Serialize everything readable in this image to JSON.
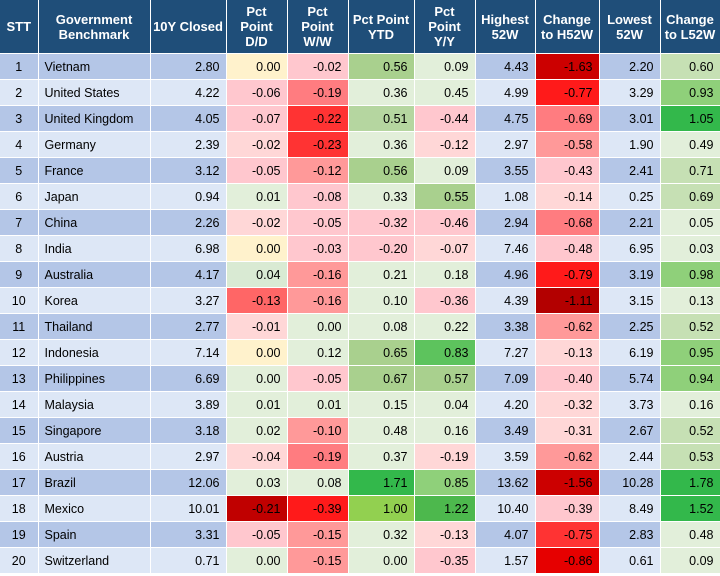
{
  "headers": [
    "STT",
    "Government Benchmark",
    "10Y Closed",
    "Pct Point D/D",
    "Pct Point W/W",
    "Pct Point YTD",
    "Pct Point Y/Y",
    "Highest 52W",
    "Change to H52W",
    "Lowest 52W",
    "Change to L52W"
  ],
  "rows": [
    {
      "stt": "1",
      "name": "Vietnam",
      "closed": "2.80",
      "dd": "0.00",
      "ww": "-0.02",
      "ytd": "0.56",
      "yy": "0.09",
      "h52": "4.43",
      "ch52": "-1.63",
      "l52": "2.20",
      "cl52": "0.60"
    },
    {
      "stt": "2",
      "name": "United States",
      "closed": "4.22",
      "dd": "-0.06",
      "ww": "-0.19",
      "ytd": "0.36",
      "yy": "0.45",
      "h52": "4.99",
      "ch52": "-0.77",
      "l52": "3.29",
      "cl52": "0.93"
    },
    {
      "stt": "3",
      "name": "United Kingdom",
      "closed": "4.05",
      "dd": "-0.07",
      "ww": "-0.22",
      "ytd": "0.51",
      "yy": "-0.44",
      "h52": "4.75",
      "ch52": "-0.69",
      "l52": "3.01",
      "cl52": "1.05"
    },
    {
      "stt": "4",
      "name": "Germany",
      "closed": "2.39",
      "dd": "-0.02",
      "ww": "-0.23",
      "ytd": "0.36",
      "yy": "-0.12",
      "h52": "2.97",
      "ch52": "-0.58",
      "l52": "1.90",
      "cl52": "0.49"
    },
    {
      "stt": "5",
      "name": "France",
      "closed": "3.12",
      "dd": "-0.05",
      "ww": "-0.12",
      "ytd": "0.56",
      "yy": "0.09",
      "h52": "3.55",
      "ch52": "-0.43",
      "l52": "2.41",
      "cl52": "0.71"
    },
    {
      "stt": "6",
      "name": "Japan",
      "closed": "0.94",
      "dd": "0.01",
      "ww": "-0.08",
      "ytd": "0.33",
      "yy": "0.55",
      "h52": "1.08",
      "ch52": "-0.14",
      "l52": "0.25",
      "cl52": "0.69"
    },
    {
      "stt": "7",
      "name": "China",
      "closed": "2.26",
      "dd": "-0.02",
      "ww": "-0.05",
      "ytd": "-0.32",
      "yy": "-0.46",
      "h52": "2.94",
      "ch52": "-0.68",
      "l52": "2.21",
      "cl52": "0.05"
    },
    {
      "stt": "8",
      "name": "India",
      "closed": "6.98",
      "dd": "0.00",
      "ww": "-0.03",
      "ytd": "-0.20",
      "yy": "-0.07",
      "h52": "7.46",
      "ch52": "-0.48",
      "l52": "6.95",
      "cl52": "0.03"
    },
    {
      "stt": "9",
      "name": "Australia",
      "closed": "4.17",
      "dd": "0.04",
      "ww": "-0.16",
      "ytd": "0.21",
      "yy": "0.18",
      "h52": "4.96",
      "ch52": "-0.79",
      "l52": "3.19",
      "cl52": "0.98"
    },
    {
      "stt": "10",
      "name": "Korea",
      "closed": "3.27",
      "dd": "-0.13",
      "ww": "-0.16",
      "ytd": "0.10",
      "yy": "-0.36",
      "h52": "4.39",
      "ch52": "-1.11",
      "l52": "3.15",
      "cl52": "0.13"
    },
    {
      "stt": "11",
      "name": "Thailand",
      "closed": "2.77",
      "dd": "-0.01",
      "ww": "0.00",
      "ytd": "0.08",
      "yy": "0.22",
      "h52": "3.38",
      "ch52": "-0.62",
      "l52": "2.25",
      "cl52": "0.52"
    },
    {
      "stt": "12",
      "name": "Indonesia",
      "closed": "7.14",
      "dd": "0.00",
      "ww": "0.12",
      "ytd": "0.65",
      "yy": "0.83",
      "h52": "7.27",
      "ch52": "-0.13",
      "l52": "6.19",
      "cl52": "0.95"
    },
    {
      "stt": "13",
      "name": "Philippines",
      "closed": "6.69",
      "dd": "0.00",
      "ww": "-0.05",
      "ytd": "0.67",
      "yy": "0.57",
      "h52": "7.09",
      "ch52": "-0.40",
      "l52": "5.74",
      "cl52": "0.94"
    },
    {
      "stt": "14",
      "name": "Malaysia",
      "closed": "3.89",
      "dd": "0.01",
      "ww": "0.01",
      "ytd": "0.15",
      "yy": "0.04",
      "h52": "4.20",
      "ch52": "-0.32",
      "l52": "3.73",
      "cl52": "0.16"
    },
    {
      "stt": "15",
      "name": "Singapore",
      "closed": "3.18",
      "dd": "0.02",
      "ww": "-0.10",
      "ytd": "0.48",
      "yy": "0.16",
      "h52": "3.49",
      "ch52": "-0.31",
      "l52": "2.67",
      "cl52": "0.52"
    },
    {
      "stt": "16",
      "name": "Austria",
      "closed": "2.97",
      "dd": "-0.04",
      "ww": "-0.19",
      "ytd": "0.37",
      "yy": "-0.19",
      "h52": "3.59",
      "ch52": "-0.62",
      "l52": "2.44",
      "cl52": "0.53"
    },
    {
      "stt": "17",
      "name": "Brazil",
      "closed": "12.06",
      "dd": "0.03",
      "ww": "0.08",
      "ytd": "1.71",
      "yy": "0.85",
      "h52": "13.62",
      "ch52": "-1.56",
      "l52": "10.28",
      "cl52": "1.78"
    },
    {
      "stt": "18",
      "name": "Mexico",
      "closed": "10.01",
      "dd": "-0.21",
      "ww": "-0.39",
      "ytd": "1.00",
      "yy": "1.22",
      "h52": "10.40",
      "ch52": "-0.39",
      "l52": "8.49",
      "cl52": "1.52"
    },
    {
      "stt": "19",
      "name": "Spain",
      "closed": "3.31",
      "dd": "-0.05",
      "ww": "-0.15",
      "ytd": "0.32",
      "yy": "-0.13",
      "h52": "4.07",
      "ch52": "-0.75",
      "l52": "2.83",
      "cl52": "0.48"
    },
    {
      "stt": "20",
      "name": "Switzerland",
      "closed": "0.71",
      "dd": "0.00",
      "ww": "-0.15",
      "ytd": "0.00",
      "yy": "-0.35",
      "h52": "1.57",
      "ch52": "-0.86",
      "l52": "0.61",
      "cl52": "0.09"
    }
  ],
  "cell_colors": {
    "dd": [
      "#fff2cc",
      "#ffc7ce",
      "#ffc7ce",
      "#ffd7d7",
      "#ffc7ce",
      "#e2efda",
      "#ffd7d7",
      "#fff2cc",
      "#d9ead3",
      "#ff6666",
      "#ffd7d7",
      "#fff2cc",
      "#e2efda",
      "#e2efda",
      "#e2efda",
      "#ffd7d7",
      "#e2efda",
      "#c00000",
      "#ffc7ce",
      "#e2efda"
    ],
    "ww": [
      "#ffc7ce",
      "#ff7c80",
      "#ff3333",
      "#ff3333",
      "#ff9999",
      "#ffc7ce",
      "#ffc7ce",
      "#ffc7ce",
      "#ff9999",
      "#ff9999",
      "#e2efda",
      "#e2efda",
      "#ffc7ce",
      "#e2efda",
      "#ff9999",
      "#ff7c80",
      "#e2efda",
      "#ff1a1a",
      "#ff9999",
      "#ff9999"
    ],
    "ytd": [
      "#a9d08e",
      "#e2efda",
      "#b5d6a0",
      "#e2efda",
      "#a9d08e",
      "#e2efda",
      "#ffc7ce",
      "#ffc7ce",
      "#e2efda",
      "#e2efda",
      "#e2efda",
      "#a9d08e",
      "#a9d08e",
      "#e2efda",
      "#e2efda",
      "#e2efda",
      "#33b84b",
      "#92d050",
      "#e2efda",
      "#e2efda"
    ],
    "yy": [
      "#e2efda",
      "#e2efda",
      "#ffc7ce",
      "#ffd7d7",
      "#e2efda",
      "#a9d08e",
      "#ffc7ce",
      "#ffd7d7",
      "#e2efda",
      "#ffc7ce",
      "#e2efda",
      "#5dc35d",
      "#a9d08e",
      "#e2efda",
      "#e2efda",
      "#ffd7d7",
      "#8fd07a",
      "#4db84d",
      "#ffd7d7",
      "#ffc7ce"
    ],
    "ch52": [
      "#cc0000",
      "#ff1a1a",
      "#ff7c80",
      "#ff9999",
      "#ffc7ce",
      "#ffd7d7",
      "#ff7c80",
      "#ffc7ce",
      "#ff1a1a",
      "#b30000",
      "#ff9999",
      "#ffd7d7",
      "#ffc7ce",
      "#ffd7d7",
      "#ffd7d7",
      "#ff9999",
      "#cc0000",
      "#ffc7ce",
      "#ff3333",
      "#e60000"
    ],
    "cl52": [
      "#c6e0b4",
      "#8fd07a",
      "#33b84b",
      "#e2efda",
      "#c6e0b4",
      "#c6e0b4",
      "#e2efda",
      "#e2efda",
      "#8fd07a",
      "#e2efda",
      "#c6e0b4",
      "#8fd07a",
      "#8fd07a",
      "#e2efda",
      "#c6e0b4",
      "#c6e0b4",
      "#33b84b",
      "#33b84b",
      "#e2efda",
      "#e2efda"
    ]
  },
  "header_color": "#1f4e79",
  "row_colors": {
    "odd": "#b4c6e7",
    "even": "#dde7f6"
  }
}
